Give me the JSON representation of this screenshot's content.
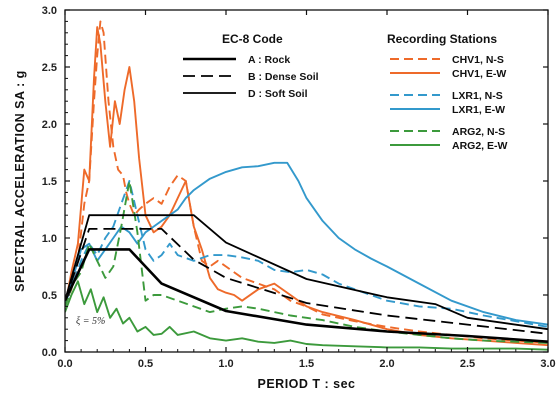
{
  "chart_data": {
    "type": "line",
    "xlabel": "PERIOD  T : sec",
    "ylabel": "SPECTRAL  ACCELERATION  SA : g",
    "xlim": [
      0,
      3.0
    ],
    "ylim": [
      0,
      3.0
    ],
    "x_ticks": [
      "0.0",
      "0.5",
      "1.0",
      "1.5",
      "2.0",
      "2.5",
      "3.0"
    ],
    "y_ticks": [
      "0.0",
      "0.5",
      "1.0",
      "1.5",
      "2.0",
      "2.5",
      "3.0"
    ],
    "grid": false,
    "legend_ec8_title": "EC-8 Code",
    "legend_stations_title": "Recording Stations",
    "annotation": "ξ = 5%",
    "colors": {
      "orange": "#ee6a2a",
      "blue": "#3399cc",
      "green": "#3c9a3c",
      "black": "#000000"
    },
    "code_series": [
      {
        "name": "A :  Rock",
        "dash": "solid-thick",
        "x": [
          0,
          0.15,
          0.4,
          0.6,
          1.0,
          1.5,
          2.0,
          2.5,
          3.0
        ],
        "y": [
          0.45,
          0.9,
          0.9,
          0.6,
          0.36,
          0.24,
          0.18,
          0.14,
          0.09
        ]
      },
      {
        "name": "B :  Dense Soil",
        "dash": "dashed",
        "x": [
          0,
          0.15,
          0.6,
          0.8,
          1.0,
          1.5,
          2.0,
          2.5,
          3.0
        ],
        "y": [
          0.45,
          1.08,
          1.08,
          0.81,
          0.65,
          0.43,
          0.32,
          0.24,
          0.16
        ]
      },
      {
        "name": "D :  Soft Soil",
        "dash": "solid",
        "x": [
          0,
          0.15,
          0.8,
          1.0,
          1.5,
          2.0,
          2.3,
          2.5,
          3.0
        ],
        "y": [
          0.45,
          1.2,
          1.2,
          0.96,
          0.64,
          0.48,
          0.42,
          0.3,
          0.2
        ]
      }
    ],
    "station_series": [
      {
        "name": "CHV1,  N-S",
        "color": "orange",
        "dash": "dashed",
        "x": [
          0,
          0.04,
          0.08,
          0.12,
          0.15,
          0.18,
          0.2,
          0.22,
          0.24,
          0.27,
          0.3,
          0.33,
          0.36,
          0.38,
          0.4,
          0.43,
          0.46,
          0.5,
          0.55,
          0.6,
          0.65,
          0.7,
          0.75,
          0.8,
          0.85,
          0.9,
          0.95,
          1.0,
          1.1,
          1.2,
          1.3,
          1.4,
          1.5,
          1.6,
          1.8,
          2.0,
          2.2,
          2.4,
          2.6,
          2.8,
          3.0
        ],
        "y": [
          0.4,
          0.55,
          0.8,
          1.3,
          1.5,
          2.2,
          2.6,
          2.9,
          2.8,
          2.2,
          1.8,
          1.6,
          1.55,
          1.4,
          1.3,
          1.2,
          1.25,
          1.3,
          1.35,
          1.3,
          1.45,
          1.55,
          1.5,
          1.1,
          0.8,
          0.75,
          0.8,
          0.75,
          0.65,
          0.6,
          0.55,
          0.45,
          0.4,
          0.33,
          0.27,
          0.22,
          0.18,
          0.15,
          0.12,
          0.1,
          0.08
        ]
      },
      {
        "name": "CHV1,  E-W",
        "color": "orange",
        "dash": "solid",
        "x": [
          0,
          0.04,
          0.08,
          0.12,
          0.15,
          0.18,
          0.2,
          0.22,
          0.25,
          0.28,
          0.31,
          0.34,
          0.37,
          0.4,
          0.43,
          0.46,
          0.5,
          0.55,
          0.6,
          0.65,
          0.7,
          0.75,
          0.8,
          0.85,
          0.9,
          0.95,
          1.0,
          1.05,
          1.1,
          1.2,
          1.3,
          1.4,
          1.5,
          1.6,
          1.8,
          2.0,
          2.2,
          2.4,
          2.6,
          2.8,
          3.0
        ],
        "y": [
          0.4,
          0.7,
          0.95,
          1.6,
          1.5,
          2.4,
          2.85,
          2.7,
          2.2,
          1.8,
          2.2,
          2.0,
          2.3,
          2.5,
          2.2,
          1.7,
          1.2,
          1.05,
          1.1,
          1.2,
          1.35,
          1.5,
          1.1,
          0.9,
          0.65,
          0.55,
          0.52,
          0.5,
          0.45,
          0.55,
          0.6,
          0.5,
          0.4,
          0.35,
          0.28,
          0.2,
          0.15,
          0.12,
          0.1,
          0.08,
          0.06
        ]
      },
      {
        "name": "LXR1,  N-S",
        "color": "blue",
        "dash": "dashed",
        "x": [
          0,
          0.05,
          0.1,
          0.15,
          0.2,
          0.25,
          0.3,
          0.35,
          0.4,
          0.45,
          0.5,
          0.55,
          0.6,
          0.65,
          0.7,
          0.8,
          0.9,
          1.0,
          1.1,
          1.2,
          1.3,
          1.4,
          1.5,
          1.6,
          1.7,
          1.8,
          1.9,
          2.0,
          2.2,
          2.4,
          2.6,
          2.8,
          3.0
        ],
        "y": [
          0.4,
          0.6,
          0.8,
          0.95,
          0.85,
          1.0,
          1.1,
          1.3,
          1.5,
          1.2,
          0.9,
          0.8,
          0.85,
          0.95,
          0.85,
          0.8,
          0.85,
          0.85,
          0.83,
          0.8,
          0.72,
          0.7,
          0.72,
          0.68,
          0.6,
          0.55,
          0.5,
          0.45,
          0.4,
          0.38,
          0.32,
          0.27,
          0.22
        ]
      },
      {
        "name": "LXR1,  E-W",
        "color": "blue",
        "dash": "solid",
        "x": [
          0,
          0.05,
          0.1,
          0.15,
          0.2,
          0.25,
          0.3,
          0.35,
          0.4,
          0.45,
          0.5,
          0.55,
          0.6,
          0.65,
          0.7,
          0.75,
          0.8,
          0.9,
          1.0,
          1.1,
          1.2,
          1.3,
          1.38,
          1.45,
          1.5,
          1.6,
          1.7,
          1.8,
          1.9,
          2.0,
          2.2,
          2.4,
          2.6,
          2.8,
          3.0
        ],
        "y": [
          0.4,
          0.65,
          0.9,
          0.95,
          0.8,
          0.9,
          1.0,
          1.1,
          1.05,
          0.95,
          1.05,
          1.1,
          1.15,
          1.2,
          1.25,
          1.35,
          1.42,
          1.52,
          1.58,
          1.62,
          1.63,
          1.66,
          1.66,
          1.5,
          1.35,
          1.15,
          1.0,
          0.9,
          0.82,
          0.75,
          0.6,
          0.45,
          0.35,
          0.28,
          0.24
        ]
      },
      {
        "name": "ARG2,  N-S",
        "color": "green",
        "dash": "dashed",
        "x": [
          0,
          0.05,
          0.1,
          0.15,
          0.2,
          0.25,
          0.3,
          0.35,
          0.4,
          0.45,
          0.5,
          0.55,
          0.6,
          0.7,
          0.8,
          0.9,
          1.0,
          1.1,
          1.2,
          1.3,
          1.4,
          1.5,
          1.6,
          1.8,
          2.0,
          2.2,
          2.4,
          2.6,
          2.8,
          3.0
        ],
        "y": [
          0.4,
          0.6,
          0.7,
          0.95,
          0.8,
          0.65,
          0.75,
          1.1,
          1.5,
          1.05,
          0.45,
          0.5,
          0.5,
          0.45,
          0.4,
          0.35,
          0.38,
          0.4,
          0.38,
          0.35,
          0.32,
          0.3,
          0.28,
          0.22,
          0.18,
          0.15,
          0.12,
          0.1,
          0.09,
          0.08
        ]
      },
      {
        "name": "ARG2,  E-W",
        "color": "green",
        "dash": "solid",
        "x": [
          0,
          0.04,
          0.08,
          0.12,
          0.16,
          0.2,
          0.24,
          0.28,
          0.32,
          0.36,
          0.4,
          0.45,
          0.5,
          0.55,
          0.6,
          0.65,
          0.7,
          0.8,
          0.9,
          1.0,
          1.1,
          1.2,
          1.3,
          1.4,
          1.5,
          1.6,
          1.8,
          2.0,
          2.2,
          2.4,
          2.6,
          2.8,
          3.0
        ],
        "y": [
          0.35,
          0.5,
          0.62,
          0.42,
          0.55,
          0.35,
          0.48,
          0.3,
          0.38,
          0.25,
          0.3,
          0.18,
          0.22,
          0.15,
          0.16,
          0.22,
          0.15,
          0.18,
          0.12,
          0.1,
          0.12,
          0.09,
          0.08,
          0.1,
          0.07,
          0.06,
          0.05,
          0.04,
          0.04,
          0.03,
          0.03,
          0.03,
          0.02
        ]
      }
    ]
  }
}
